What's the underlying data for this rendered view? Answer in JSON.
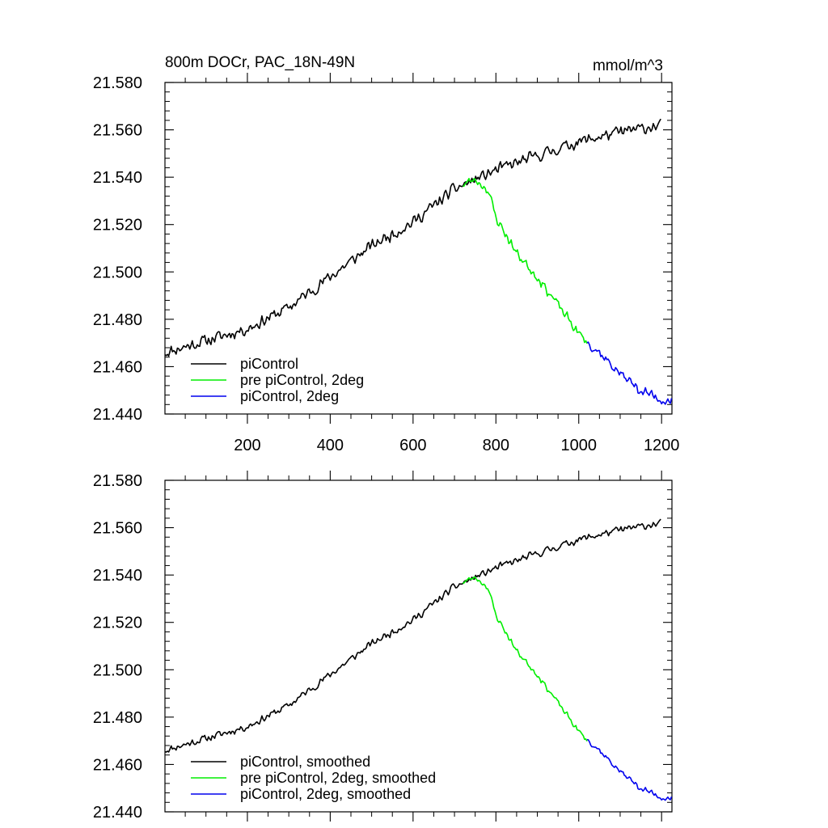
{
  "chart_data": [
    {
      "type": "line",
      "title": "800m DOCr, PAC_18N-49N",
      "units": "mmol/m^3",
      "xlabel": "",
      "ylabel": "",
      "xlim": [
        1,
        1225
      ],
      "ylim": [
        21.44,
        21.58
      ],
      "xticks": [
        200,
        400,
        600,
        800,
        1000,
        1200
      ],
      "xtick_labels": [
        "200",
        "400",
        "600",
        "800",
        "1000",
        "1200"
      ],
      "yticks": [
        21.44,
        21.46,
        21.48,
        21.5,
        21.52,
        21.54,
        21.56,
        21.58
      ],
      "ytick_labels": [
        "21.440",
        "21.460",
        "21.480",
        "21.500",
        "21.520",
        "21.540",
        "21.560",
        "21.580"
      ],
      "grid": false,
      "legend_position": "bottom-left",
      "series": [
        {
          "name": "piControl",
          "color": "#000000",
          "noise": 0.0026,
          "seed": 11,
          "x": [
            1,
            100,
            200,
            300,
            400,
            500,
            600,
            700,
            800,
            900,
            1000,
            1100,
            1200
          ],
          "y": [
            21.466,
            21.471,
            21.476,
            21.485,
            21.498,
            21.511,
            21.521,
            21.535,
            21.543,
            21.549,
            21.555,
            21.559,
            21.562
          ]
        },
        {
          "name": "pre piControl, 2deg",
          "color": "#00ee00",
          "noise": 0.0022,
          "seed": 23,
          "x": [
            720,
            750,
            780,
            800,
            850,
            900,
            950,
            1000,
            1020
          ],
          "y": [
            21.537,
            21.539,
            21.535,
            21.523,
            21.508,
            21.498,
            21.486,
            21.474,
            21.47
          ]
        },
        {
          "name": "piControl, 2deg",
          "color": "#0000ee",
          "noise": 0.0024,
          "seed": 37,
          "x": [
            1020,
            1050,
            1100,
            1150,
            1200,
            1225
          ],
          "y": [
            21.471,
            21.466,
            21.457,
            21.45,
            21.446,
            21.446
          ]
        }
      ]
    },
    {
      "type": "line",
      "title": "",
      "xlabel": "",
      "ylabel": "",
      "xlim": [
        1,
        1225
      ],
      "ylim": [
        21.44,
        21.58
      ],
      "xticks": [
        200,
        400,
        600,
        800,
        1000,
        1200
      ],
      "xtick_labels": [],
      "yticks": [
        21.44,
        21.46,
        21.48,
        21.5,
        21.52,
        21.54,
        21.56,
        21.58
      ],
      "ytick_labels": [
        "21.440",
        "21.460",
        "21.480",
        "21.500",
        "21.520",
        "21.540",
        "21.560",
        "21.580"
      ],
      "grid": false,
      "legend_position": "bottom-left",
      "series": [
        {
          "name": "piControl, smoothed",
          "color": "#000000",
          "noise": 0.0016,
          "seed": 11,
          "x": [
            1,
            100,
            200,
            300,
            400,
            500,
            600,
            700,
            800,
            900,
            1000,
            1100,
            1200
          ],
          "y": [
            21.466,
            21.471,
            21.476,
            21.485,
            21.498,
            21.511,
            21.521,
            21.535,
            21.543,
            21.549,
            21.555,
            21.559,
            21.562
          ]
        },
        {
          "name": "pre piControl, 2deg, smoothed",
          "color": "#00ee00",
          "noise": 0.0013,
          "seed": 23,
          "x": [
            720,
            750,
            780,
            800,
            850,
            900,
            950,
            1000,
            1020
          ],
          "y": [
            21.537,
            21.539,
            21.535,
            21.523,
            21.508,
            21.498,
            21.486,
            21.474,
            21.47
          ]
        },
        {
          "name": "piControl, 2deg, smoothed",
          "color": "#0000ee",
          "noise": 0.0014,
          "seed": 37,
          "x": [
            1020,
            1050,
            1100,
            1150,
            1200,
            1225
          ],
          "y": [
            21.471,
            21.466,
            21.457,
            21.45,
            21.446,
            21.446
          ]
        }
      ]
    }
  ]
}
